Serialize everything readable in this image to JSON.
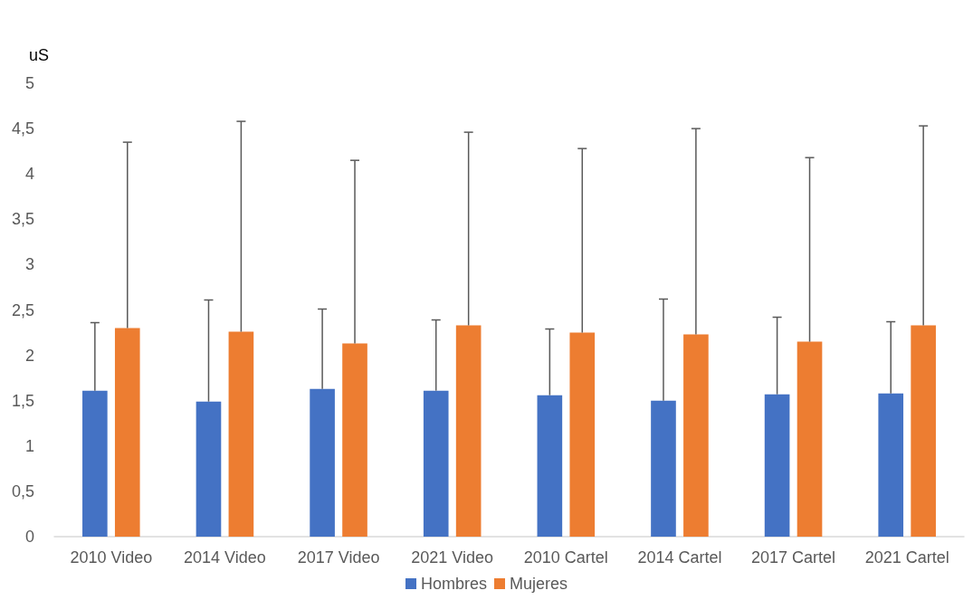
{
  "chart_data": {
    "type": "bar",
    "ylabel": "uS",
    "categories": [
      "2010 Video",
      "2014 Video",
      "2017 Video",
      "2021 Video",
      "2010 Cartel",
      "2014 Cartel",
      "2017 Cartel",
      "2021 Cartel"
    ],
    "series": [
      {
        "name": "Hombres",
        "color": "#4472c4",
        "values": [
          1.61,
          1.49,
          1.63,
          1.61,
          1.56,
          1.5,
          1.57,
          1.58
        ],
        "errors": [
          [
            1.61,
            2.36
          ],
          [
            1.49,
            2.61
          ],
          [
            1.63,
            2.51
          ],
          [
            1.61,
            2.39
          ],
          [
            1.56,
            2.29
          ],
          [
            1.5,
            2.62
          ],
          [
            1.57,
            2.42
          ],
          [
            1.58,
            2.37
          ]
        ]
      },
      {
        "name": "Mujeres",
        "color": "#ed7d31",
        "values": [
          2.3,
          2.26,
          2.13,
          2.33,
          2.25,
          2.23,
          2.15,
          2.33
        ],
        "errors": [
          [
            2.3,
            4.35
          ],
          [
            2.26,
            4.58
          ],
          [
            2.13,
            4.15
          ],
          [
            2.33,
            4.46
          ],
          [
            2.25,
            4.28
          ],
          [
            2.23,
            4.5
          ],
          [
            2.15,
            4.18
          ],
          [
            2.33,
            4.53
          ]
        ]
      }
    ],
    "ylim": [
      0,
      5
    ],
    "yticks": [
      0,
      {
        "value": 0.5,
        "label": "0,5"
      },
      1,
      {
        "value": 1.5,
        "label": "1,5"
      },
      2,
      {
        "value": 2.5,
        "label": "2,5"
      },
      3,
      {
        "value": 3.5,
        "label": "3,5"
      },
      4,
      {
        "value": 4.5,
        "label": "4,5"
      },
      5
    ],
    "grid": false,
    "legend": "bottom"
  }
}
